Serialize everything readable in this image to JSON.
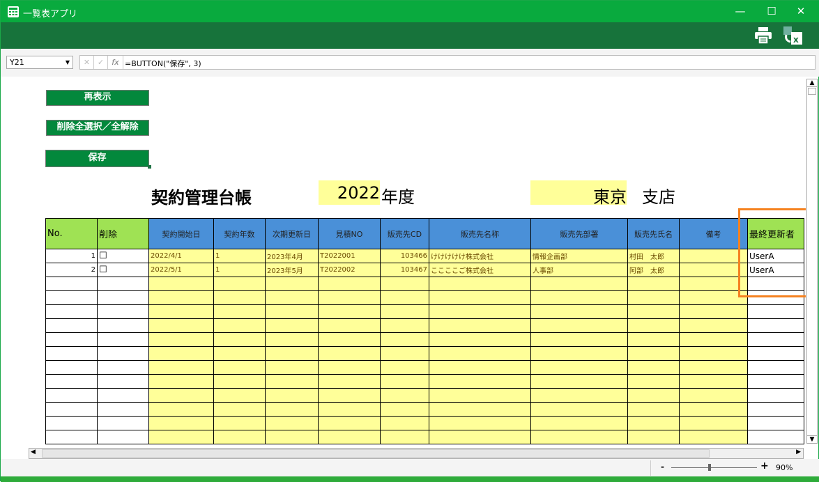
{
  "app": {
    "title": "一覧表アプリ"
  },
  "window": {
    "minimize": "—",
    "maximize": "☐",
    "close": "✕"
  },
  "toolbar": {
    "print_icon": "printer-icon",
    "export_icon": "excel-export-icon"
  },
  "formula_bar": {
    "cell_ref": "Y21",
    "cancel": "✕",
    "confirm": "✓",
    "fx": "fx",
    "formula": "=BUTTON(\"保存\", 3)"
  },
  "buttons": {
    "refresh": "再表示",
    "toggle_delete": "削除全選択／全解除",
    "save": "保存"
  },
  "sheet": {
    "title": "契約管理台帳",
    "year": "2022",
    "year_suffix": "年度",
    "branch": "東京",
    "branch_suffix": "支店"
  },
  "table": {
    "headers": [
      "No.",
      "削除",
      "契約開始日",
      "契約年数",
      "次期更新日",
      "見積NO",
      "販売先CD",
      "販売先名称",
      "販売先部署",
      "販売先氏名",
      "備考",
      "最終更新者"
    ],
    "rows": [
      [
        "1",
        "☐",
        "2022/4/1",
        "1",
        "2023年4月",
        "T2022001",
        "103466",
        "けけけけけ株式会社",
        "情報企画部",
        "村田　太郎",
        "",
        "UserA"
      ],
      [
        "2",
        "☐",
        "2022/5/1",
        "1",
        "2023年5月",
        "T2022002",
        "103467",
        "ここここご株式会社",
        "人事部",
        "阿部　太郎",
        "",
        "UserA"
      ]
    ],
    "empty_rows": 12
  },
  "highlight_color": "#f58220",
  "zoom": {
    "minus": "-",
    "plus": "+",
    "value": "90%",
    "level": 90
  }
}
